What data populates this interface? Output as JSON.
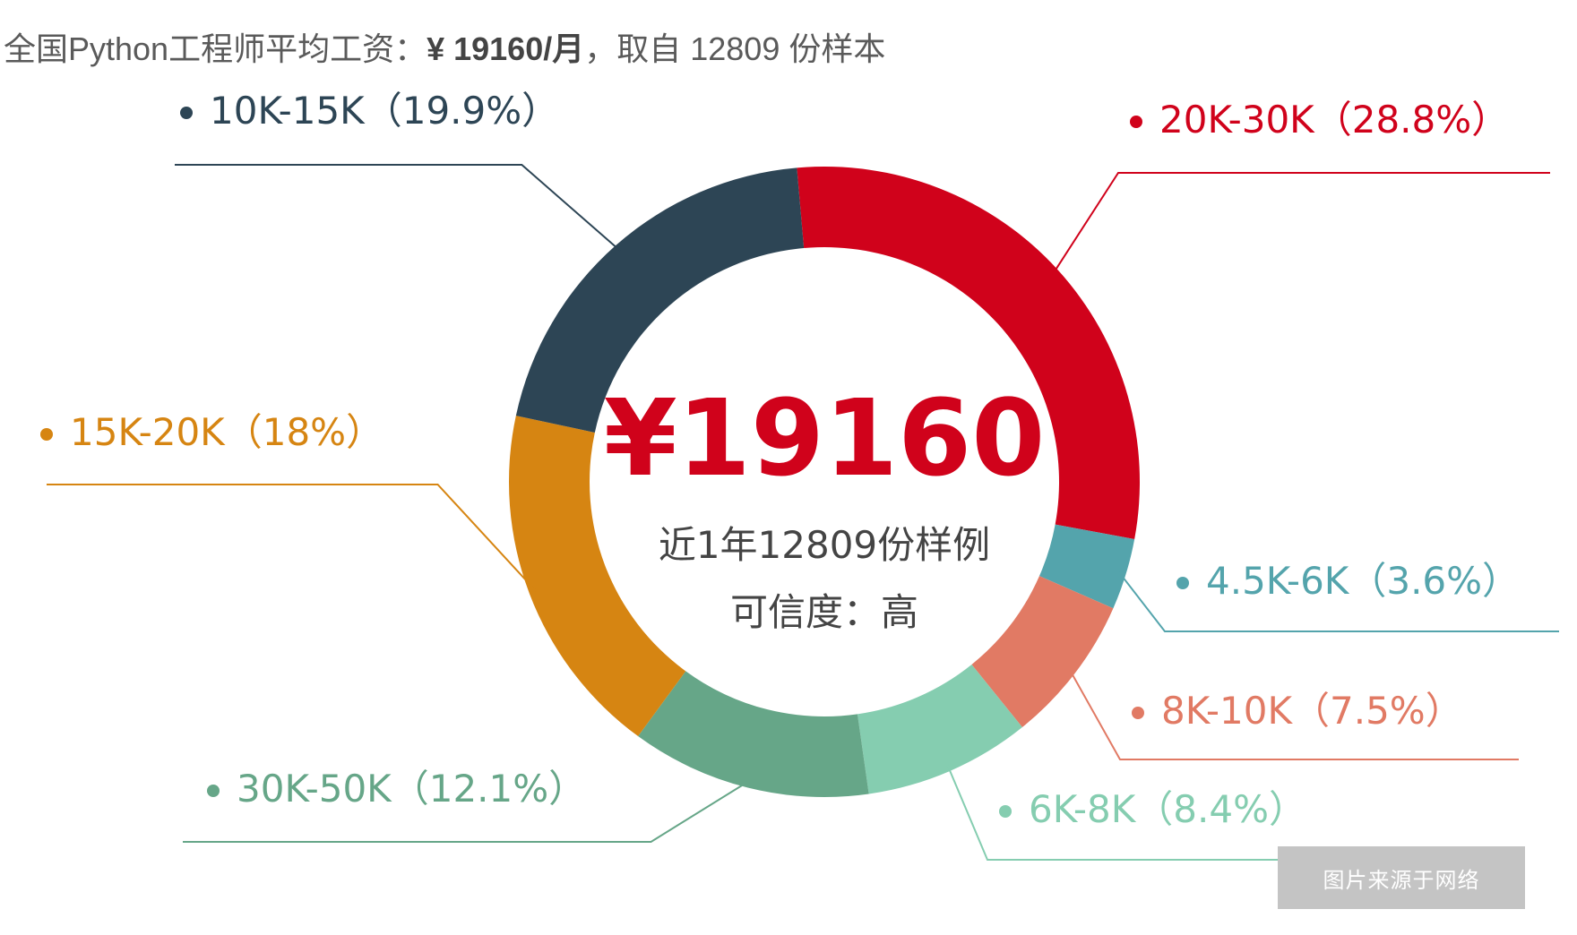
{
  "title": {
    "prefix": "全国Python工程师平均工资：",
    "value": "¥ 19160/月",
    "suffix": "，取自 12809 份样本"
  },
  "center": {
    "amount": "¥19160",
    "samples": "近1年12809份样例",
    "credibility": "可信度：高"
  },
  "watermark": "图片来源于网络",
  "chart_data": {
    "type": "pie",
    "donut": true,
    "start_angle_deg": -5,
    "slices": [
      {
        "label": "20K-30K（28.8%）",
        "range": "20K-30K",
        "value": 28.8,
        "color": "#d0021b"
      },
      {
        "label": "4.5K-6K（3.6%）",
        "range": "4.5K-6K",
        "value": 3.6,
        "color": "#54a4ac"
      },
      {
        "label": "8K-10K（7.5%）",
        "range": "8K-10K",
        "value": 7.5,
        "color": "#e17a64"
      },
      {
        "label": "6K-8K（8.4%）",
        "range": "6K-8K",
        "value": 8.4,
        "color": "#85cdb0"
      },
      {
        "label": "30K-50K（12.1%）",
        "range": "30K-50K",
        "value": 12.1,
        "color": "#66a688"
      },
      {
        "label": "15K-20K（18%）",
        "range": "15K-20K",
        "value": 18,
        "color": "#d68512"
      },
      {
        "label": "10K-15K（19.9%）",
        "range": "10K-15K",
        "value": 19.9,
        "color": "#2d4555"
      }
    ]
  }
}
